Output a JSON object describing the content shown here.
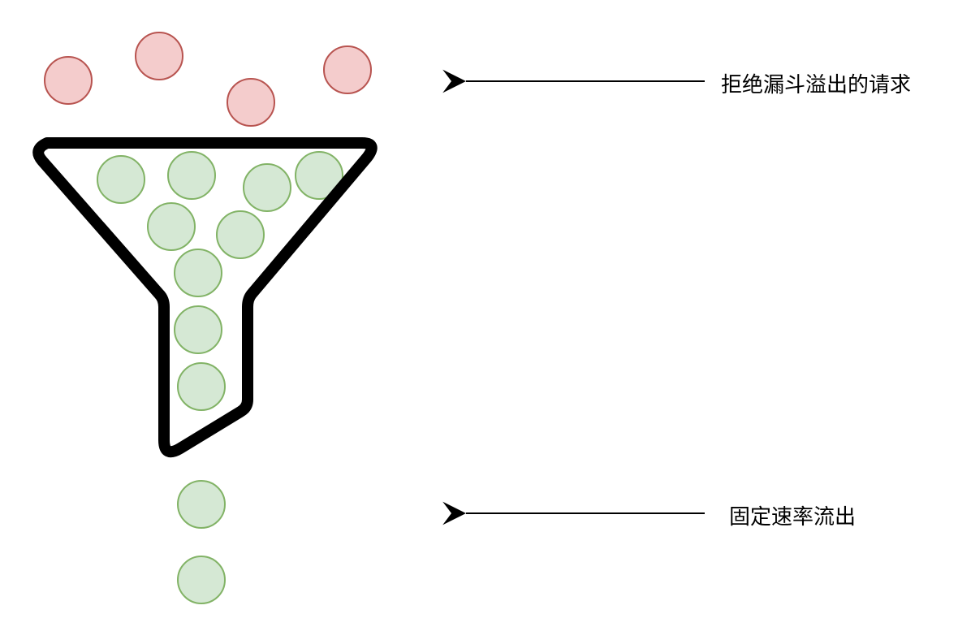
{
  "labels": {
    "rejected": "拒绝漏斗溢出的请求",
    "fixed_rate": "固定速率流出"
  },
  "colors": {
    "rejected_fill": "#f4cccc",
    "rejected_stroke": "#b85450",
    "accepted_fill": "#d5e8d4",
    "accepted_stroke": "#82b366",
    "funnel_stroke": "#000000",
    "arrow": "#000000"
  },
  "icons": {
    "funnel": "funnel-icon",
    "arrow": "arrow-left-icon",
    "request": "circle-icon"
  }
}
